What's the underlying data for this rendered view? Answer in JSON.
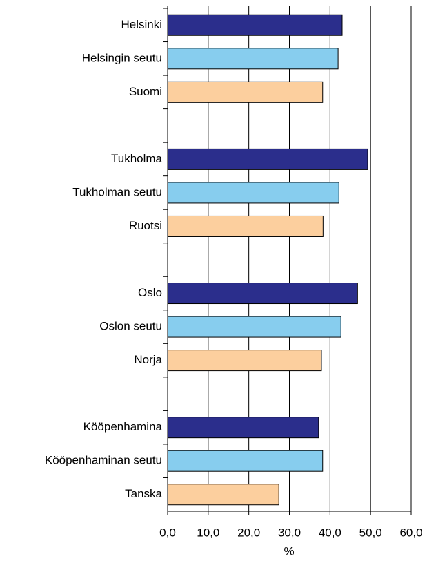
{
  "chart_data": {
    "type": "bar",
    "orientation": "horizontal",
    "categories": [
      "Helsinki",
      "Helsingin seutu",
      "Suomi",
      null,
      "Tukholma",
      "Tukholman seutu",
      "Ruotsi",
      null,
      "Oslo",
      "Oslon seutu",
      "Norja",
      null,
      "Kööpenhamina",
      "Kööpenhaminan seutu",
      "Tanska"
    ],
    "values": [
      43.0,
      42.0,
      38.2,
      null,
      49.3,
      42.2,
      38.3,
      null,
      46.8,
      42.7,
      37.9,
      null,
      37.2,
      38.2,
      27.4
    ],
    "colors": [
      "#2b2e8c",
      "#87cdee",
      "#fccf9e",
      null,
      "#2b2e8c",
      "#87cdee",
      "#fccf9e",
      null,
      "#2b2e8c",
      "#87cdee",
      "#fccf9e",
      null,
      "#2b2e8c",
      "#87cdee",
      "#fccf9e"
    ],
    "xlabel": "%",
    "xlim": [
      0,
      60
    ],
    "xticks": [
      {
        "value": 0,
        "label": "0,0"
      },
      {
        "value": 10,
        "label": "10,0"
      },
      {
        "value": 20,
        "label": "20,0"
      },
      {
        "value": 30,
        "label": "30,0"
      },
      {
        "value": 40,
        "label": "40,0"
      },
      {
        "value": 50,
        "label": "50,0"
      },
      {
        "value": 60,
        "label": "60,0"
      }
    ],
    "grid": true
  }
}
